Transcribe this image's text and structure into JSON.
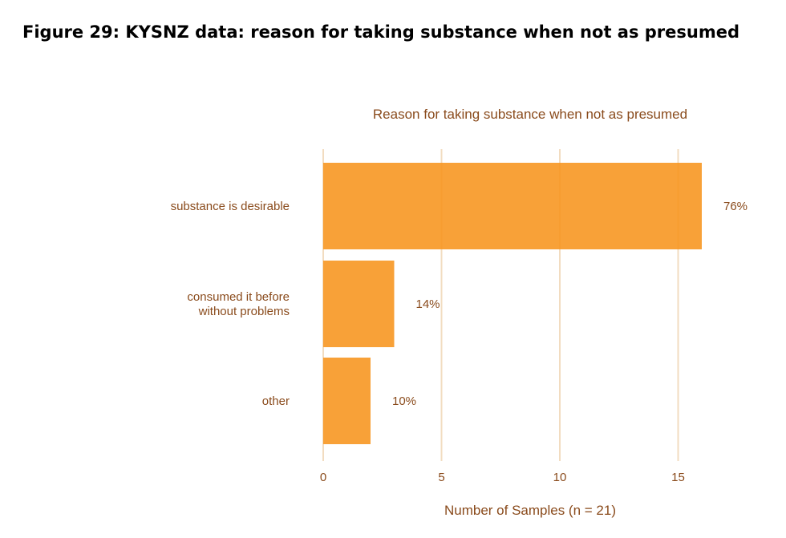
{
  "figure_caption": "Figure 29: KYSNZ data: reason for taking substance when not as presumed",
  "chart_data": {
    "type": "bar",
    "orientation": "horizontal",
    "title": "Reason for taking substance when not as presumed",
    "xlabel": "Number of Samples (n = 21)",
    "ylabel": "",
    "categories": [
      [
        "substance is desirable"
      ],
      [
        "consumed it before",
        "without problems"
      ],
      [
        "other"
      ]
    ],
    "values": [
      16,
      3,
      2
    ],
    "data_labels": [
      "76%",
      "14%",
      "10%"
    ],
    "xlim": [
      0,
      16
    ],
    "xticks": [
      0,
      5,
      10,
      15
    ],
    "xtick_labels": [
      "0",
      "5",
      "10",
      "15"
    ],
    "grid": "vertical",
    "colors": {
      "bar": "#f7941d",
      "grid": "#f2dcc0",
      "text": "#8a4b1c"
    }
  }
}
